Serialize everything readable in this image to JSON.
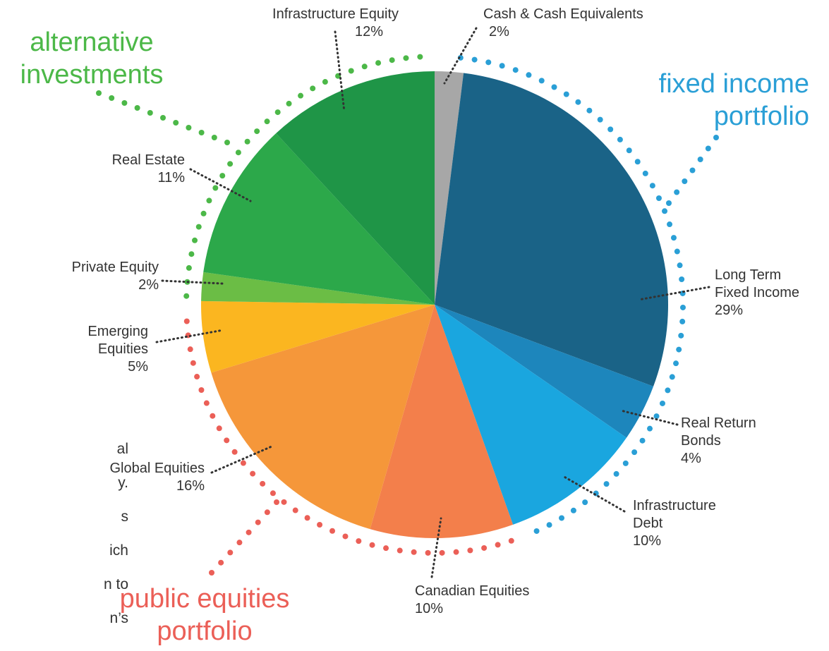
{
  "chart_data": {
    "type": "pie",
    "categories": [
      "Cash & Cash Equivalents",
      "Long Term Fixed Income",
      "Real Return Bonds",
      "Infrastructure Debt",
      "Canadian Equities",
      "Global Equities",
      "Emerging Equities",
      "Private Equity",
      "Real Estate",
      "Infrastructure Equity"
    ],
    "values": [
      2,
      29,
      4,
      10,
      10,
      16,
      5,
      2,
      11,
      12
    ],
    "value_labels": [
      "2%",
      "29%",
      "4%",
      "10%",
      "10%",
      "16%",
      "5%",
      "2%",
      "11%",
      "12%"
    ],
    "colors": [
      "#a7a7a7",
      "#1a6387",
      "#1d86bc",
      "#1aa6df",
      "#f37f4b",
      "#f5973a",
      "#fbb620",
      "#6bbd45",
      "#2ca84a",
      "#1f9547"
    ],
    "annotations": [
      {
        "text": "alternative investments",
        "color": "#4cb848"
      },
      {
        "text": "fixed income portfolio",
        "color": "#2a9fd6"
      },
      {
        "text": "public equities portfolio",
        "color": "#eb5f57"
      }
    ],
    "side_text": [
      "al",
      "y.",
      "s",
      "ich",
      "n to",
      "n’s"
    ]
  }
}
